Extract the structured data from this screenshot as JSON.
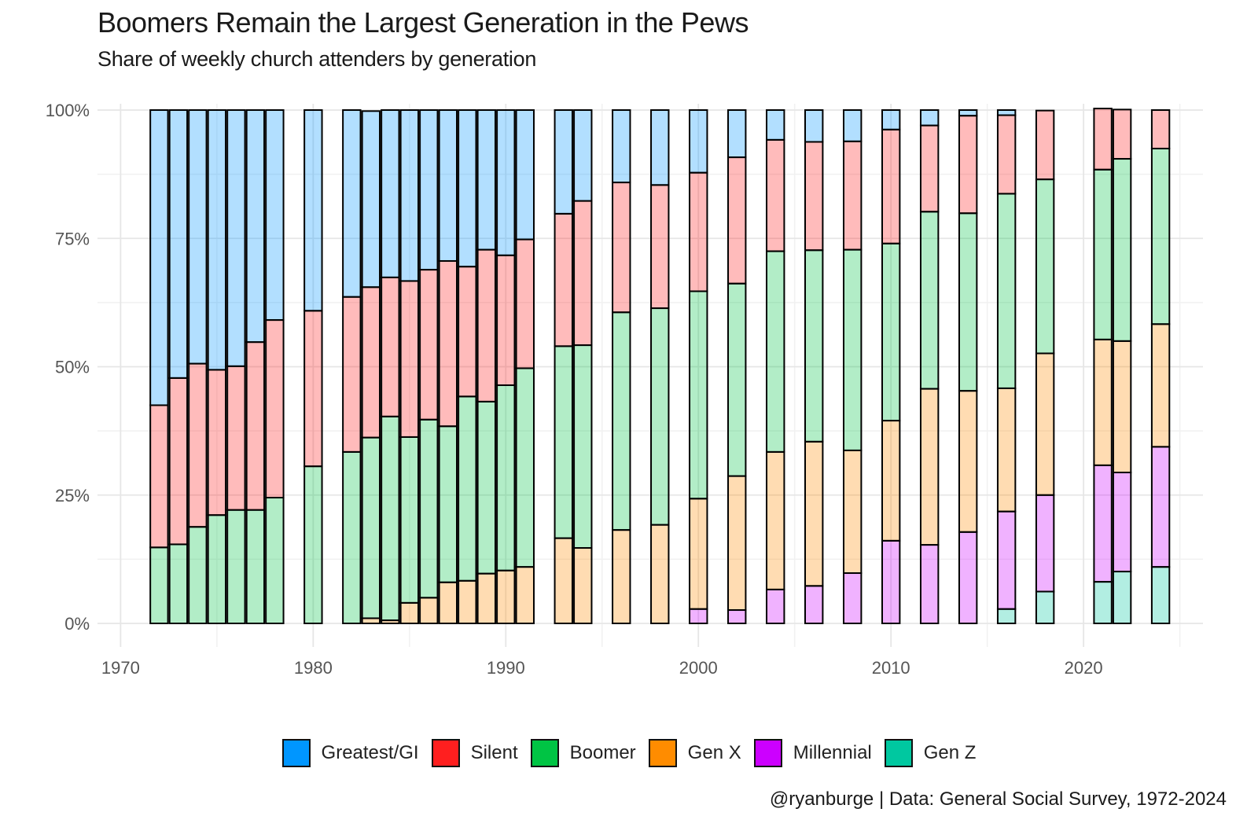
{
  "title": "Boomers Remain the Largest Generation in the Pews",
  "subtitle": "Share of weekly church attenders by generation",
  "caption": "@ryanburge | Data: General Social Survey, 1972-2024",
  "colors": {
    "Greatest/GI": "#0096ff",
    "Silent": "#ff1f1f",
    "Boomer": "#00c444",
    "Gen X": "#ff8c00",
    "Millennial": "#cc00ff",
    "Gen Z": "#00c8a0"
  },
  "chart_data": {
    "type": "bar",
    "stacked": true,
    "title": "Boomers Remain the Largest Generation in the Pews",
    "subtitle": "Share of weekly church attenders by generation",
    "xlabel": "",
    "ylabel": "",
    "xlim": [
      1968.8,
      2026.2
    ],
    "ylim": [
      0,
      100
    ],
    "x_ticks": [
      1970,
      1980,
      1990,
      2000,
      2010,
      2020
    ],
    "x_tick_labels": [
      "1970",
      "1980",
      "1990",
      "2000",
      "2010",
      "2020"
    ],
    "y_ticks": [
      0,
      25,
      50,
      75,
      100
    ],
    "y_tick_labels": [
      "0%",
      "25%",
      "50%",
      "75%",
      "100%"
    ],
    "grid": true,
    "legend_position": "bottom",
    "legend": [
      "Greatest/GI",
      "Silent",
      "Boomer",
      "Gen X",
      "Millennial",
      "Gen Z"
    ],
    "x": [
      1972,
      1973,
      1974,
      1975,
      1976,
      1977,
      1978,
      1980,
      1982,
      1983,
      1984,
      1985,
      1986,
      1987,
      1988,
      1989,
      1990,
      1991,
      1993,
      1994,
      1996,
      1998,
      2000,
      2002,
      2004,
      2006,
      2008,
      2010,
      2012,
      2014,
      2016,
      2018,
      2021,
      2022,
      2024
    ],
    "series": [
      {
        "name": "Gen Z",
        "values": [
          0,
          0,
          0,
          0,
          0,
          0,
          0,
          0,
          0,
          0,
          0,
          0,
          0,
          0,
          0,
          0,
          0,
          0,
          0,
          0,
          0,
          0,
          0,
          0,
          0,
          0,
          0,
          0,
          0,
          0,
          2.8,
          6.2,
          8.1,
          10.1,
          11
        ]
      },
      {
        "name": "Millennial",
        "values": [
          0,
          0,
          0,
          0,
          0,
          0,
          0,
          0,
          0,
          0,
          0,
          0,
          0,
          0,
          0,
          0,
          0,
          0,
          0,
          0,
          0,
          0,
          2.8,
          2.6,
          6.6,
          7.3,
          9.8,
          16.1,
          15.3,
          17.8,
          19,
          18.8,
          22.7,
          19.3,
          23.4
        ]
      },
      {
        "name": "Gen X",
        "values": [
          0,
          0,
          0,
          0,
          0,
          0,
          0,
          0,
          0,
          1,
          0.6,
          4,
          5,
          8,
          8.3,
          9.7,
          10.3,
          11,
          16.6,
          14.7,
          18.2,
          19.2,
          21.5,
          26.1,
          26.8,
          28.1,
          23.9,
          23.4,
          30.4,
          27.5,
          24,
          27.6,
          24.5,
          25.6,
          23.9
        ]
      },
      {
        "name": "Boomer",
        "values": [
          14.8,
          15.4,
          18.8,
          21.1,
          22.1,
          22.1,
          24.5,
          30.6,
          33.4,
          35.2,
          39.7,
          32.3,
          34.7,
          30.4,
          35.9,
          33.5,
          36.1,
          38.7,
          37.4,
          39.5,
          42.4,
          42.2,
          40.4,
          37.5,
          39.1,
          37.3,
          39.1,
          34.5,
          34.5,
          34.6,
          37.9,
          33.9,
          33.1,
          35.5,
          34.2
        ]
      },
      {
        "name": "Silent",
        "values": [
          27.7,
          32.4,
          31.8,
          28.3,
          28,
          32.7,
          34.6,
          30.3,
          30.2,
          29.3,
          27.1,
          30.4,
          29.2,
          32.2,
          25.3,
          29.6,
          25.3,
          25.1,
          25.8,
          28.1,
          25.3,
          24,
          23.1,
          24.6,
          21.7,
          21.1,
          21.1,
          22.2,
          16.8,
          19,
          15.3,
          13.4,
          11.9,
          9.6,
          7.5
        ]
      },
      {
        "name": "Greatest/GI",
        "values": [
          57.5,
          52.2,
          49.4,
          50.6,
          49.9,
          45.2,
          40.9,
          39.1,
          36.4,
          34.3,
          32.6,
          33.3,
          31.1,
          29.4,
          30.5,
          27.2,
          28.3,
          25.2,
          20.2,
          17.7,
          14.1,
          14.6,
          12.2,
          9.2,
          5.8,
          6.2,
          6.1,
          3.8,
          3,
          1.1,
          1,
          0,
          0,
          0,
          0
        ]
      }
    ]
  }
}
